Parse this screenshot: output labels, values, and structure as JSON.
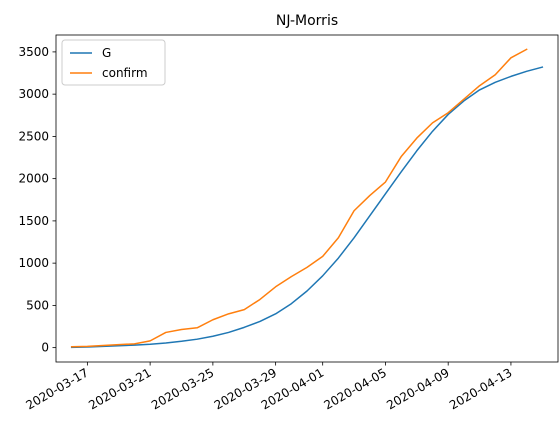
{
  "chart_data": {
    "type": "line",
    "title": "NJ-Morris",
    "xlabel": "",
    "ylabel": "",
    "x": [
      "2020-03-16",
      "2020-03-17",
      "2020-03-18",
      "2020-03-19",
      "2020-03-20",
      "2020-03-21",
      "2020-03-22",
      "2020-03-23",
      "2020-03-24",
      "2020-03-25",
      "2020-03-26",
      "2020-03-27",
      "2020-03-28",
      "2020-03-29",
      "2020-03-30",
      "2020-03-31",
      "2020-04-01",
      "2020-04-02",
      "2020-04-03",
      "2020-04-04",
      "2020-04-05",
      "2020-04-06",
      "2020-04-07",
      "2020-04-08",
      "2020-04-09",
      "2020-04-10",
      "2020-04-11",
      "2020-04-12",
      "2020-04-13",
      "2020-04-14",
      "2020-04-15"
    ],
    "xlim": [
      "2020-03-15T00:00",
      "2020-04-16T00:00"
    ],
    "ylim": [
      -170,
      3700
    ],
    "x_ticks": [
      "2020-03-17",
      "2020-03-21",
      "2020-03-25",
      "2020-03-29",
      "2020-04-01",
      "2020-04-05",
      "2020-04-09",
      "2020-04-13"
    ],
    "y_ticks": [
      0,
      500,
      1000,
      1500,
      2000,
      2500,
      3000,
      3500
    ],
    "series": [
      {
        "name": "G",
        "color": "#1f77b4",
        "values": [
          3,
          8,
          15,
          22,
          30,
          40,
          55,
          75,
          100,
          135,
          180,
          240,
          310,
          400,
          520,
          670,
          850,
          1060,
          1300,
          1560,
          1820,
          2080,
          2330,
          2560,
          2760,
          2920,
          3050,
          3140,
          3210,
          3270,
          3320
        ]
      },
      {
        "name": "confirm",
        "color": "#ff7f0e",
        "values": [
          10,
          15,
          25,
          35,
          45,
          80,
          180,
          215,
          235,
          330,
          400,
          450,
          570,
          720,
          840,
          950,
          1080,
          1300,
          1620,
          1800,
          1960,
          2260,
          2480,
          2660,
          2780,
          2940,
          3100,
          3230,
          3430,
          3530,
          null
        ]
      }
    ],
    "legend": {
      "position": "top-left",
      "entries": [
        "G",
        "confirm"
      ]
    },
    "grid": false
  }
}
